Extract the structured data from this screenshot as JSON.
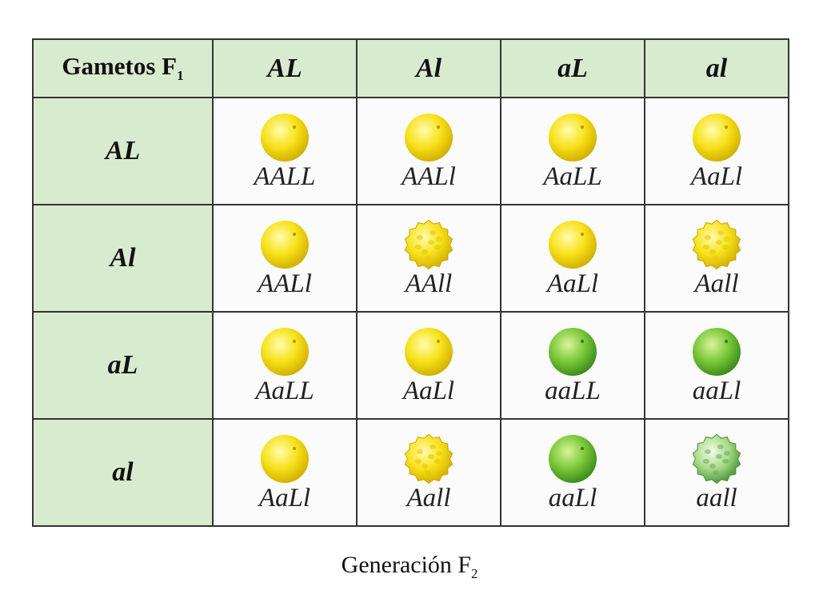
{
  "table": {
    "corner": {
      "text": "Gametos F",
      "sub": "1"
    },
    "columns": [
      "AL",
      "Al",
      "aL",
      "al"
    ],
    "rows": [
      {
        "label": "AL",
        "cells": [
          "AALL",
          "AALl",
          "AaLL",
          "AaLl"
        ]
      },
      {
        "label": "Al",
        "cells": [
          "AALl",
          "AAll",
          "AaLl",
          "Aall"
        ]
      },
      {
        "label": "aL",
        "cells": [
          "AaLL",
          "AaLl",
          "aaLL",
          "aaLl"
        ]
      },
      {
        "label": "al",
        "cells": [
          "AaLl",
          "Aall",
          "aaLl",
          "aall"
        ]
      }
    ]
  },
  "caption": {
    "text": "Generación F",
    "sub": "2"
  }
}
